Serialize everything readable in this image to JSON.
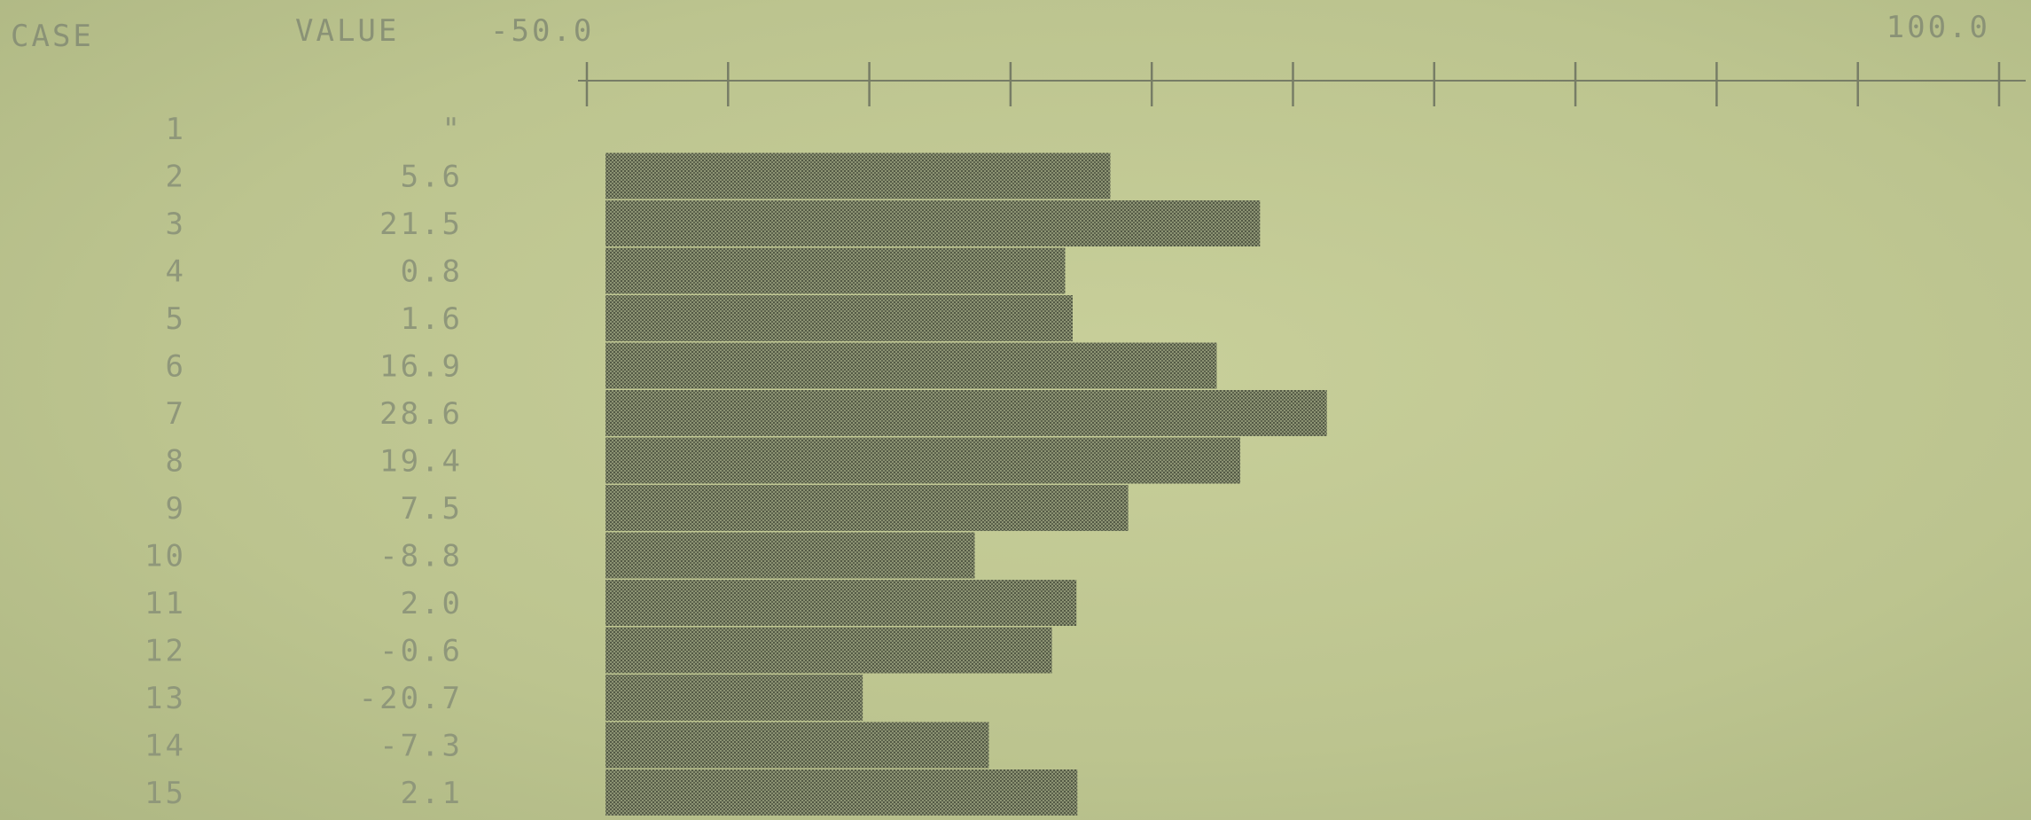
{
  "header": {
    "case_label": "CASE",
    "value_label": "VALUE",
    "axis_min_label": "-50.0",
    "axis_max_label": "100.0"
  },
  "colors": {
    "background": "#bdc690",
    "bar": "#5e6450",
    "text": "#8f977a"
  },
  "chart_data": {
    "type": "bar",
    "orientation": "horizontal",
    "title": "",
    "xlabel": "",
    "ylabel": "",
    "xlim": [
      -50.0,
      100.0
    ],
    "tick_count": 11,
    "grid": false,
    "legend": "none",
    "rows": [
      {
        "case": "1",
        "label": "\"",
        "value": null
      },
      {
        "case": "2",
        "label": "5.6",
        "value": 5.6
      },
      {
        "case": "3",
        "label": "21.5",
        "value": 21.5
      },
      {
        "case": "4",
        "label": "0.8",
        "value": 0.8
      },
      {
        "case": "5",
        "label": "1.6",
        "value": 1.6
      },
      {
        "case": "6",
        "label": "16.9",
        "value": 16.9
      },
      {
        "case": "7",
        "label": "28.6",
        "value": 28.6
      },
      {
        "case": "8",
        "label": "19.4",
        "value": 19.4
      },
      {
        "case": "9",
        "label": "7.5",
        "value": 7.5
      },
      {
        "case": "10",
        "label": "-8.8",
        "value": -8.8
      },
      {
        "case": "11",
        "label": "2.0",
        "value": 2.0
      },
      {
        "case": "12",
        "label": "-0.6",
        "value": -0.6
      },
      {
        "case": "13",
        "label": "-20.7",
        "value": -20.7
      },
      {
        "case": "14",
        "label": "-7.3",
        "value": -7.3
      },
      {
        "case": "15",
        "label": "2.1",
        "value": 2.1
      }
    ]
  }
}
